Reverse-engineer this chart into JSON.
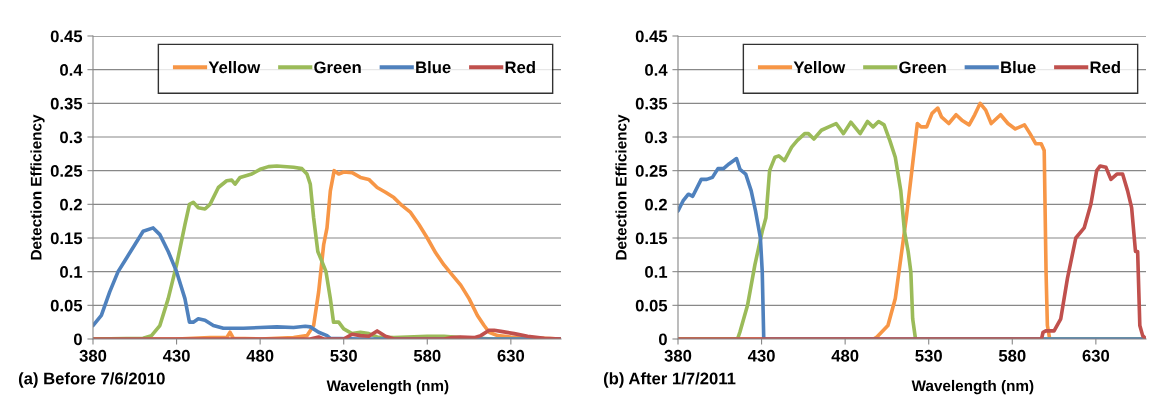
{
  "chart_data": [
    {
      "type": "line",
      "xlabel": "Wavelength (nm)",
      "ylabel": "Detection Efficiency",
      "annotations": [
        "(a) Before 7/6/2010"
      ],
      "xlim": [
        380,
        660
      ],
      "xticks": [
        380,
        430,
        480,
        530,
        580,
        630
      ],
      "ylim": [
        0,
        0.45
      ],
      "yticks": [
        0,
        0.05,
        0.1,
        0.15,
        0.2,
        0.25,
        0.3,
        0.35,
        0.4,
        0.45
      ],
      "grid": "y",
      "legend": "top right",
      "marker": "none",
      "line_style": "solid",
      "series": [
        {
          "name": "Yellow",
          "color": "#f79646",
          "x": [
            380,
            430,
            450,
            460,
            462,
            464,
            480,
            500,
            508,
            512,
            515,
            518,
            520,
            522,
            524.3,
            527,
            530,
            535,
            540,
            545,
            550,
            555,
            560,
            565,
            570,
            575,
            580,
            585,
            590,
            595,
            600,
            605,
            610,
            614,
            617,
            622,
            630,
            640,
            650,
            660
          ],
          "values": [
            0,
            0,
            0.002,
            0.002,
            0.01,
            0.001,
            0,
            0.002,
            0.005,
            0.02,
            0.07,
            0.14,
            0.165,
            0.22,
            0.25,
            0.245,
            0.248,
            0.247,
            0.24,
            0.237,
            0.225,
            0.218,
            0.21,
            0.198,
            0.188,
            0.17,
            0.15,
            0.128,
            0.11,
            0.095,
            0.08,
            0.06,
            0.035,
            0.02,
            0.01,
            0.005,
            0.003,
            0.002,
            0.001,
            0
          ]
        },
        {
          "name": "Green",
          "color": "#9bbb59",
          "x": [
            380,
            410,
            415,
            420,
            425,
            430,
            435,
            437.7,
            440,
            443,
            447,
            450,
            455,
            460,
            463,
            465,
            468,
            475,
            480,
            485,
            490,
            500,
            505,
            508,
            510,
            512,
            514.5,
            517,
            519.4,
            522,
            523.9,
            527,
            530,
            535,
            540,
            545,
            550,
            560,
            580,
            590,
            600,
            620,
            660
          ],
          "values": [
            0,
            0.001,
            0.005,
            0.02,
            0.06,
            0.11,
            0.17,
            0.2,
            0.203,
            0.195,
            0.193,
            0.2,
            0.225,
            0.235,
            0.236,
            0.23,
            0.24,
            0.245,
            0.252,
            0.256,
            0.257,
            0.255,
            0.253,
            0.245,
            0.23,
            0.18,
            0.13,
            0.115,
            0.1,
            0.06,
            0.025,
            0.025,
            0.015,
            0.008,
            0.01,
            0.008,
            0.003,
            0.002,
            0.004,
            0.004,
            0.002,
            0,
            0
          ]
        },
        {
          "name": "Blue",
          "color": "#4f81bd",
          "x": [
            380,
            385,
            390,
            395,
            400,
            405,
            410,
            416,
            420,
            425,
            430,
            435,
            437.7,
            440,
            443,
            447,
            452,
            458,
            470,
            480,
            490,
            500,
            507,
            510,
            515,
            520,
            522,
            540,
            660
          ],
          "values": [
            0.02,
            0.035,
            0.07,
            0.1,
            0.12,
            0.14,
            0.16,
            0.165,
            0.155,
            0.13,
            0.1,
            0.06,
            0.025,
            0.025,
            0.03,
            0.028,
            0.02,
            0.016,
            0.016,
            0.017,
            0.018,
            0.017,
            0.019,
            0.018,
            0.01,
            0.005,
            0.001,
            0,
            0
          ]
        },
        {
          "name": "Red",
          "color": "#c0504d",
          "x": [
            380,
            510,
            515,
            518,
            530,
            535,
            540,
            545,
            550,
            555,
            560,
            590,
            595,
            600,
            608,
            612,
            617,
            620,
            625,
            632,
            640,
            650,
            660
          ],
          "values": [
            0,
            0,
            0.003,
            0,
            0,
            0.007,
            0.005,
            0.004,
            0.012,
            0.004,
            0,
            0,
            0.002,
            0.003,
            0.002,
            0.005,
            0.013,
            0.013,
            0.011,
            0.008,
            0.004,
            0.001,
            0
          ]
        }
      ]
    },
    {
      "type": "line",
      "xlabel": "Wavelength (nm)",
      "ylabel": "Detection Efficiency",
      "annotations": [
        "(b) After 1/7/2011"
      ],
      "xlim": [
        380,
        660
      ],
      "xticks": [
        380,
        430,
        480,
        530,
        580,
        630
      ],
      "ylim": [
        0,
        0.45
      ],
      "yticks": [
        0,
        0.05,
        0.1,
        0.15,
        0.2,
        0.25,
        0.3,
        0.35,
        0.4,
        0.45
      ],
      "grid": "y",
      "legend": "top right",
      "marker": "none",
      "line_style": "solid",
      "series": [
        {
          "name": "Yellow",
          "color": "#f79646",
          "x": [
            380,
            497,
            499,
            505.6,
            510,
            513.3,
            516.6,
            519.9,
            523.2,
            525.4,
            528.8,
            532,
            535.4,
            537.6,
            542,
            546.4,
            549.8,
            554.2,
            557.5,
            560.8,
            564.1,
            567.4,
            573,
            577.4,
            581.8,
            587.3,
            590.6,
            594,
            597.3,
            599.1,
            600.2,
            601,
            602.4,
            660
          ],
          "values": [
            0,
            0,
            0.003,
            0.02,
            0.06,
            0.12,
            0.18,
            0.25,
            0.32,
            0.315,
            0.315,
            0.335,
            0.343,
            0.33,
            0.32,
            0.333,
            0.325,
            0.318,
            0.333,
            0.35,
            0.34,
            0.32,
            0.333,
            0.32,
            0.312,
            0.318,
            0.305,
            0.29,
            0.29,
            0.28,
            0.1,
            0.02,
            0,
            0
          ]
        },
        {
          "name": "Green",
          "color": "#9bbb59",
          "x": [
            380,
            415.6,
            417,
            421.6,
            426,
            430.4,
            432.6,
            434.8,
            438,
            440.3,
            443.7,
            448,
            451.4,
            455.8,
            458,
            461.3,
            465.8,
            470.2,
            474.6,
            479,
            483.4,
            489,
            493.4,
            496.7,
            500,
            503.3,
            506.7,
            510,
            513.3,
            515.5,
            517.7,
            519.3,
            520.4,
            522.1,
            660
          ],
          "values": [
            0,
            0,
            0.01,
            0.05,
            0.11,
            0.16,
            0.18,
            0.25,
            0.27,
            0.272,
            0.265,
            0.285,
            0.295,
            0.305,
            0.305,
            0.297,
            0.31,
            0.315,
            0.32,
            0.305,
            0.322,
            0.305,
            0.323,
            0.315,
            0.323,
            0.318,
            0.295,
            0.27,
            0.22,
            0.16,
            0.13,
            0.1,
            0.03,
            0,
            0
          ]
        },
        {
          "name": "Blue",
          "color": "#4f81bd",
          "x": [
            380,
            383,
            386.2,
            388.8,
            393.9,
            397.2,
            400.6,
            403.9,
            407.2,
            410.5,
            415,
            417.1,
            420.5,
            423.8,
            426.4,
            429.3,
            430.4,
            431.3,
            660
          ],
          "values": [
            0.19,
            0.205,
            0.215,
            0.212,
            0.237,
            0.237,
            0.24,
            0.253,
            0.253,
            0.26,
            0.268,
            0.252,
            0.245,
            0.22,
            0.19,
            0.15,
            0.1,
            0,
            0
          ]
        },
        {
          "name": "Red",
          "color": "#c0504d",
          "x": [
            380,
            597.5,
            598.4,
            600,
            605,
            609,
            613,
            618,
            623,
            627,
            630.5,
            632.6,
            636,
            639,
            642.6,
            646,
            649,
            651.4,
            653.7,
            655,
            656.3,
            658,
            660
          ],
          "values": [
            0,
            0,
            0.01,
            0.012,
            0.012,
            0.03,
            0.09,
            0.15,
            0.165,
            0.2,
            0.25,
            0.257,
            0.255,
            0.237,
            0.245,
            0.245,
            0.22,
            0.195,
            0.13,
            0.13,
            0.02,
            0.005,
            0
          ]
        }
      ]
    }
  ]
}
